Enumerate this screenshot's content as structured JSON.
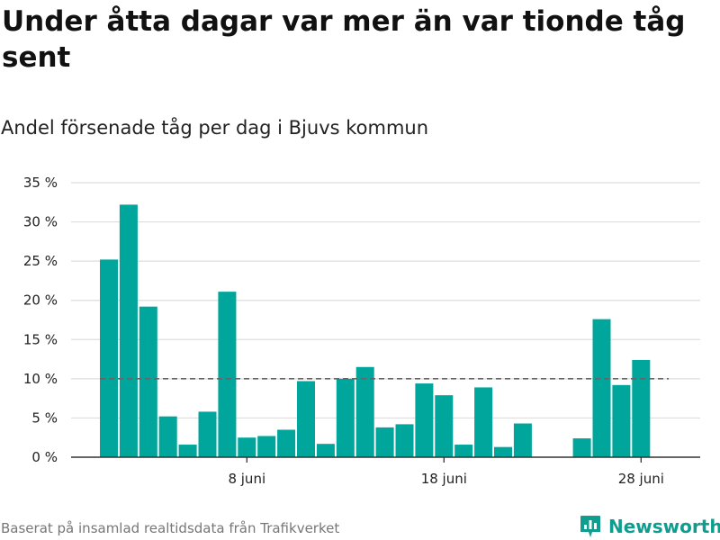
{
  "title": "Under åtta dagar var mer än var tionde tåg sent",
  "subtitle": "Andel försenade tåg per dag i Bjuvs kommun",
  "footer": {
    "source": "Baserat på insamlad realtidsdata från Trafikverket",
    "brand": "Newsworthy"
  },
  "colors": {
    "bar": "#00a59b",
    "reference_line": "#666666",
    "grid": "#dddddd",
    "axis": "#333333",
    "brand": "#0f9d8f"
  },
  "chart_data": {
    "type": "bar",
    "x_unit": "day in June",
    "x": [
      1,
      2,
      3,
      4,
      5,
      6,
      7,
      8,
      9,
      10,
      11,
      12,
      13,
      14,
      15,
      16,
      17,
      18,
      19,
      20,
      21,
      22,
      23,
      24,
      25,
      26,
      27,
      28
    ],
    "values": [
      25.2,
      32.2,
      19.2,
      5.2,
      1.6,
      5.8,
      21.1,
      2.5,
      2.7,
      3.5,
      9.7,
      1.7,
      10.0,
      11.5,
      3.8,
      4.2,
      9.4,
      7.9,
      1.6,
      8.9,
      1.3,
      4.3,
      null,
      null,
      2.4,
      17.6,
      9.2,
      12.4
    ],
    "reference_line": 10,
    "ylim": [
      0,
      35
    ],
    "yticks": [
      0,
      5,
      10,
      15,
      20,
      25,
      30,
      35
    ],
    "ytick_labels": [
      "0 %",
      "5 %",
      "10 %",
      "15 %",
      "20 %",
      "25 %",
      "30 %",
      "35 %"
    ],
    "xticks": [
      8,
      18,
      28
    ],
    "xtick_labels": [
      "8 juni",
      "18 juni",
      "28 juni"
    ],
    "grid": true,
    "xlabel": "",
    "ylabel": ""
  }
}
